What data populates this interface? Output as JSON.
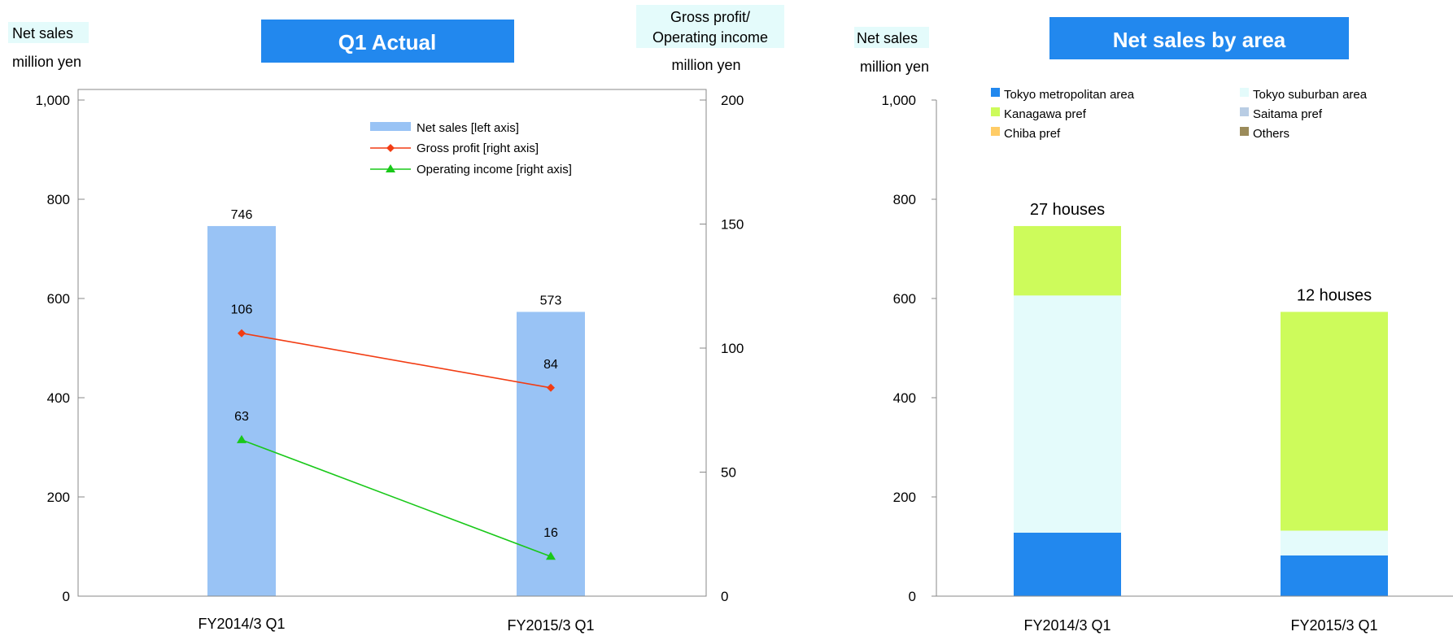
{
  "chart_data": [
    {
      "type": "bar",
      "title": "Q1 Actual",
      "left_axis": {
        "label": "Net sales",
        "unit": "million yen",
        "range": [
          0,
          1000
        ],
        "ticks": [
          "0",
          "200",
          "400",
          "600",
          "800",
          "1,000"
        ]
      },
      "right_axis": {
        "label_line1": "Gross profit/",
        "label_line2": "Operating income",
        "unit": "million yen",
        "range": [
          0,
          200
        ],
        "ticks": [
          "0",
          "50",
          "100",
          "150",
          "200"
        ]
      },
      "categories": [
        "FY2014/3 Q1",
        "FY2015/3 Q1"
      ],
      "series": [
        {
          "name": "Net sales [left axis]",
          "type": "bar",
          "axis": "left",
          "values": [
            746,
            573
          ],
          "labels": [
            "746",
            "573"
          ],
          "color": "#99c3f5"
        },
        {
          "name": "Gross profit [right axis]",
          "type": "line",
          "axis": "right",
          "marker": "diamond",
          "values": [
            106,
            84
          ],
          "labels": [
            "106",
            "84"
          ],
          "color": "#f23c13"
        },
        {
          "name": "Operating income [right axis]",
          "type": "line",
          "axis": "right",
          "marker": "triangle",
          "values": [
            63,
            16
          ],
          "labels": [
            "63",
            "16"
          ],
          "color": "#19c819"
        }
      ],
      "legend": "top-right"
    },
    {
      "type": "bar",
      "stacked": true,
      "title": "Net sales by area",
      "left_axis": {
        "label": "Net sales",
        "unit": "million yen",
        "range": [
          0,
          1000
        ],
        "ticks": [
          "0",
          "200",
          "400",
          "600",
          "800",
          "1,000"
        ]
      },
      "categories": [
        "FY2014/3 Q1",
        "FY2015/3 Q1"
      ],
      "series": [
        {
          "name": "Tokyo metropolitan area",
          "values": [
            128,
            82
          ],
          "color": "#2288ee"
        },
        {
          "name": "Tokyo suburban area",
          "values": [
            478,
            50
          ],
          "color": "#e4fbfb"
        },
        {
          "name": "Kanagawa pref",
          "values": [
            140,
            441
          ],
          "color": "#cdfb5b"
        },
        {
          "name": "Saitama pref",
          "values": [
            0,
            0
          ],
          "color": "#b9cde4"
        },
        {
          "name": "Chiba pref",
          "values": [
            0,
            0
          ],
          "color": "#ffcc66"
        },
        {
          "name": "Others",
          "values": [
            0,
            0
          ],
          "color": "#9b8b5a"
        }
      ],
      "annotations": [
        "27 houses",
        "12 houses"
      ],
      "legend": "top"
    }
  ]
}
